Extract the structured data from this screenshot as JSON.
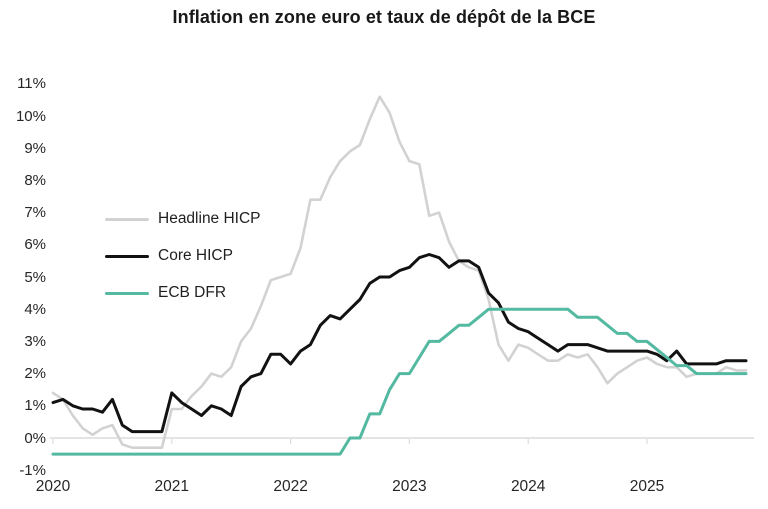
{
  "title": "Inflation en zone euro et taux de dépôt de la BCE",
  "colors": {
    "background": "#ffffff",
    "axis_line": "#dcdcdc",
    "headline_hicp": "#d2d2d2",
    "core_hicp": "#121212",
    "ecb_dfr": "#53b9a0",
    "tick_text": "#262626",
    "title_text": "#191919"
  },
  "chart_data": {
    "type": "line",
    "title": "Inflation en zone euro et taux de dépôt de la BCE",
    "x_frequency": "monthly",
    "x_start": "2020-01",
    "x_end": "2025-11",
    "xlabel": "",
    "ylabel": "",
    "ylim": [
      -1,
      11
    ],
    "grid": false,
    "zero_axis_line": true,
    "legend_position": "upper-left-inside",
    "y_ticks": [
      {
        "value": 11,
        "label": "11%"
      },
      {
        "value": 10,
        "label": "10%"
      },
      {
        "value": 9,
        "label": "9%"
      },
      {
        "value": 8,
        "label": "8%"
      },
      {
        "value": 7,
        "label": "7%"
      },
      {
        "value": 6,
        "label": "6%"
      },
      {
        "value": 5,
        "label": "5%"
      },
      {
        "value": 4,
        "label": "4%"
      },
      {
        "value": 3,
        "label": "3%"
      },
      {
        "value": 2,
        "label": "2%"
      },
      {
        "value": 1,
        "label": "1%"
      },
      {
        "value": 0,
        "label": "0%"
      },
      {
        "value": -1,
        "label": "-1%"
      }
    ],
    "x_ticks": [
      {
        "month_index": 0,
        "label": "2020"
      },
      {
        "month_index": 12,
        "label": "2021"
      },
      {
        "month_index": 24,
        "label": "2022"
      },
      {
        "month_index": 36,
        "label": "2023"
      },
      {
        "month_index": 48,
        "label": "2024"
      },
      {
        "month_index": 60,
        "label": "2025"
      }
    ],
    "series": [
      {
        "name": "Headline HICP",
        "color": "#d2d2d2",
        "values": [
          1.4,
          1.2,
          0.7,
          0.3,
          0.1,
          0.3,
          0.4,
          -0.2,
          -0.3,
          -0.3,
          -0.3,
          -0.3,
          0.9,
          0.9,
          1.3,
          1.6,
          2.0,
          1.9,
          2.2,
          3.0,
          3.4,
          4.1,
          4.9,
          5.0,
          5.1,
          5.9,
          7.4,
          7.4,
          8.1,
          8.6,
          8.9,
          9.1,
          9.9,
          10.6,
          10.1,
          9.2,
          8.6,
          8.5,
          6.9,
          7.0,
          6.1,
          5.5,
          5.3,
          5.2,
          4.3,
          2.9,
          2.4,
          2.9,
          2.8,
          2.6,
          2.4,
          2.4,
          2.6,
          2.5,
          2.6,
          2.2,
          1.7,
          2.0,
          2.2,
          2.4,
          2.5,
          2.3,
          2.2,
          2.2,
          1.9,
          2.0,
          2.0,
          2.0,
          2.2,
          2.1,
          2.1
        ]
      },
      {
        "name": "Core HICP",
        "color": "#121212",
        "values": [
          1.1,
          1.2,
          1.0,
          0.9,
          0.9,
          0.8,
          1.2,
          0.4,
          0.2,
          0.2,
          0.2,
          0.2,
          1.4,
          1.1,
          0.9,
          0.7,
          1.0,
          0.9,
          0.7,
          1.6,
          1.9,
          2.0,
          2.6,
          2.6,
          2.3,
          2.7,
          2.9,
          3.5,
          3.8,
          3.7,
          4.0,
          4.3,
          4.8,
          5.0,
          5.0,
          5.2,
          5.3,
          5.6,
          5.7,
          5.6,
          5.3,
          5.5,
          5.5,
          5.3,
          4.5,
          4.2,
          3.6,
          3.4,
          3.3,
          3.1,
          2.9,
          2.7,
          2.9,
          2.9,
          2.9,
          2.8,
          2.7,
          2.7,
          2.7,
          2.7,
          2.7,
          2.6,
          2.4,
          2.7,
          2.3,
          2.3,
          2.3,
          2.3,
          2.4,
          2.4,
          2.4
        ]
      },
      {
        "name": "ECB DFR",
        "color": "#53b9a0",
        "values": [
          -0.5,
          -0.5,
          -0.5,
          -0.5,
          -0.5,
          -0.5,
          -0.5,
          -0.5,
          -0.5,
          -0.5,
          -0.5,
          -0.5,
          -0.5,
          -0.5,
          -0.5,
          -0.5,
          -0.5,
          -0.5,
          -0.5,
          -0.5,
          -0.5,
          -0.5,
          -0.5,
          -0.5,
          -0.5,
          -0.5,
          -0.5,
          -0.5,
          -0.5,
          -0.5,
          0.0,
          0.0,
          0.75,
          0.75,
          1.5,
          2.0,
          2.0,
          2.5,
          3.0,
          3.0,
          3.25,
          3.5,
          3.5,
          3.75,
          4.0,
          4.0,
          4.0,
          4.0,
          4.0,
          4.0,
          4.0,
          4.0,
          4.0,
          3.75,
          3.75,
          3.75,
          3.5,
          3.25,
          3.25,
          3.0,
          3.0,
          2.75,
          2.5,
          2.25,
          2.25,
          2.0,
          2.0,
          2.0,
          2.0,
          2.0,
          2.0
        ]
      }
    ]
  }
}
